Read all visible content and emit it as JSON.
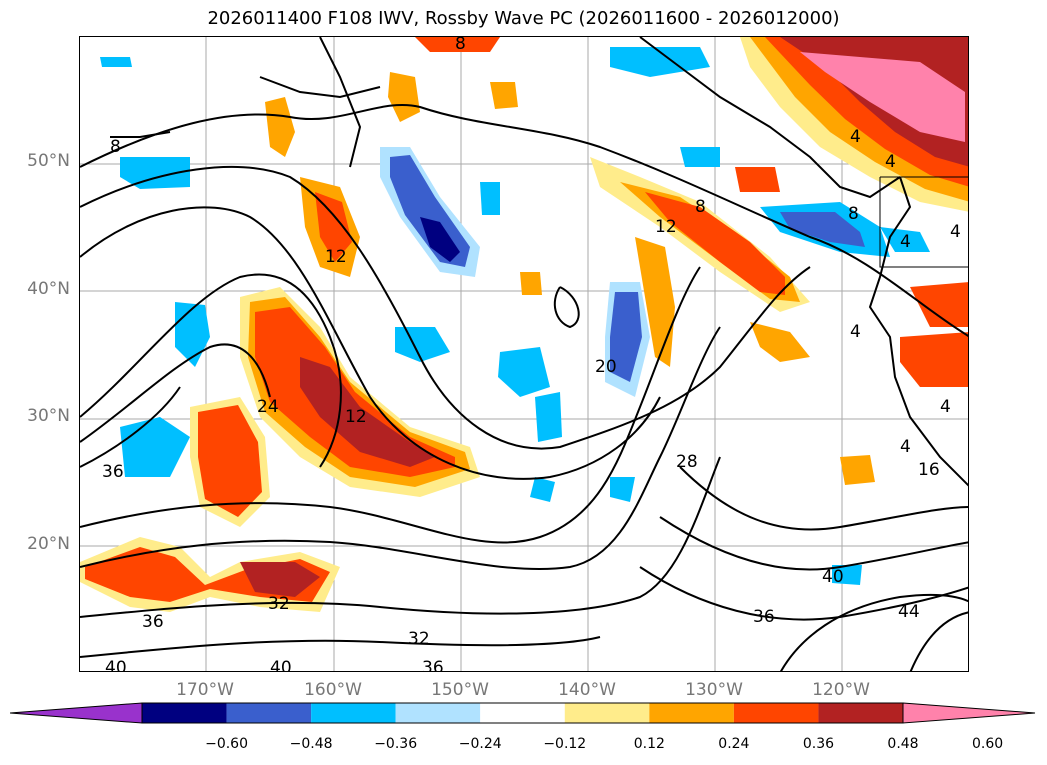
{
  "title": "2026011400 F108 IWV, Rossby Wave PC (2026011600 - 2026012000)",
  "lat_labels": [
    "50°N",
    "40°N",
    "30°N",
    "20°N"
  ],
  "lon_labels": [
    "170°W",
    "160°W",
    "150°W",
    "140°W",
    "130°W",
    "120°W"
  ],
  "colorbar": {
    "ticks": [
      "−0.60",
      "−0.48",
      "−0.36",
      "−0.24",
      "−0.12",
      "0.12",
      "0.24",
      "0.36",
      "0.48",
      "0.60"
    ],
    "colors": [
      "#9932cc",
      "#000080",
      "#3a5fcd",
      "#00bfff",
      "#b0e2ff",
      "#ffffff",
      "#ffec8b",
      "#ffa500",
      "#ff4500",
      "#b22222",
      "#ff82ab"
    ]
  },
  "contour_labels": [
    "8",
    "8",
    "12",
    "12",
    "12",
    "8",
    "4",
    "4",
    "8",
    "4",
    "4",
    "4",
    "4",
    "4",
    "16",
    "24",
    "20",
    "28",
    "36",
    "36",
    "32",
    "32",
    "40",
    "40",
    "36",
    "36",
    "40",
    "44"
  ]
}
